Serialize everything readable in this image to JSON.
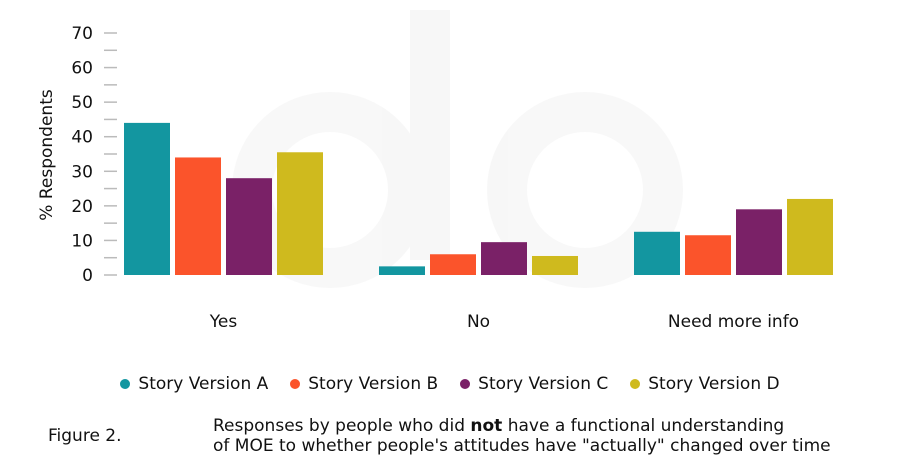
{
  "chart_data": {
    "type": "bar",
    "categories": [
      "Yes",
      "No",
      "Need more info"
    ],
    "series": [
      {
        "name": "Story Version A",
        "color": "#1396a0",
        "values": [
          44,
          2.5,
          12.5
        ]
      },
      {
        "name": "Story Version B",
        "color": "#fb542b",
        "values": [
          34,
          6,
          11.5
        ]
      },
      {
        "name": "Story Version C",
        "color": "#7a2167",
        "values": [
          28,
          9.5,
          19
        ]
      },
      {
        "name": "Story Version D",
        "color": "#cfba1e",
        "values": [
          35.5,
          5.5,
          22
        ]
      }
    ],
    "ylabel": "% Respondents",
    "ylim": [
      0,
      70
    ],
    "yticks": [
      0,
      10,
      20,
      30,
      40,
      50,
      60,
      70
    ],
    "grid": false,
    "legend_position": "bottom"
  },
  "caption": {
    "figure_label": "Figure 2.",
    "line1_before": "Responses by people who did ",
    "line1_bold": "not",
    "line1_after": " have a functional understanding",
    "line2": "of MOE to whether people's attitudes have \"actually\" changed over time"
  }
}
